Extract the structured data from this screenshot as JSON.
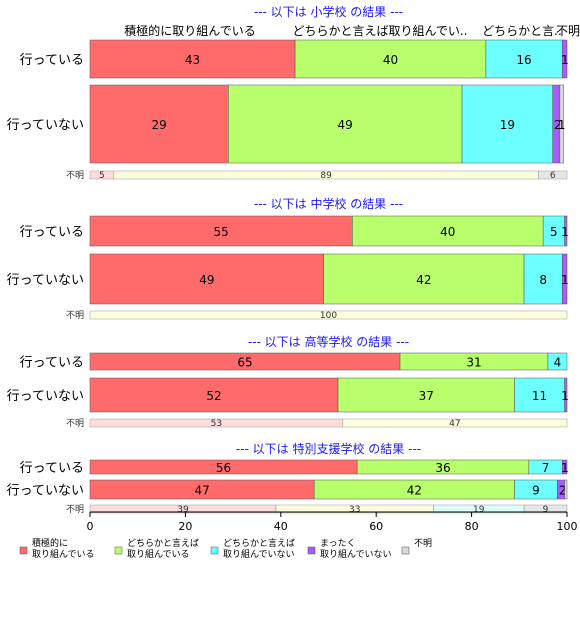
{
  "chart_data": {
    "type": "bar",
    "orientation": "horizontal",
    "stacked": true,
    "xlim": [
      0,
      100
    ],
    "xticks": [
      0,
      20,
      40,
      60,
      80,
      100
    ],
    "top_header_labels": [
      "積極的に取り組んでいる",
      "どちらかと言えば取り組んでい..",
      "どちらかと言..",
      "不明"
    ],
    "colors": [
      "#ff6b6b",
      "#b8ff6b",
      "#6bffff",
      "#a85bff",
      "#d9d9d9"
    ],
    "legend": [
      {
        "line1": "積極的に",
        "line2": "取り組んでいる"
      },
      {
        "line1": "どちらかと言えば",
        "line2": "取り組んでいる"
      },
      {
        "line1": "どちらかと言えば",
        "line2": "取り組んでいない"
      },
      {
        "line1": "まったく",
        "line2": "取り組んでいない"
      },
      {
        "line1": "不明",
        "line2": ""
      }
    ],
    "panels": [
      {
        "title": "--- 以下は 小学校 の結果 ---",
        "rows": [
          {
            "label": "行っている",
            "values": [
              43,
              40,
              16,
              1,
              0
            ],
            "labels": [
              "43",
              "40",
              "16",
              "1",
              ""
            ]
          },
          {
            "label": "行っていない",
            "values": [
              29,
              49,
              19,
              1.5,
              0.8
            ],
            "labels": [
              "29",
              "49",
              "19",
              "2",
              "1"
            ]
          }
        ],
        "fumei": {
          "label": "不明",
          "values": [
            5,
            89,
            0,
            0,
            6
          ],
          "labels": [
            "5",
            "89",
            "",
            "",
            "6"
          ]
        }
      },
      {
        "title": "--- 以下は 中学校 の結果 ---",
        "rows": [
          {
            "label": "行っている",
            "values": [
              55,
              40,
              4.5,
              0.5,
              0
            ],
            "labels": [
              "55",
              "40",
              "5",
              "1",
              ""
            ]
          },
          {
            "label": "行っていない",
            "values": [
              49,
              42,
              8,
              1,
              0
            ],
            "labels": [
              "49",
              "42",
              "8",
              "1",
              ""
            ]
          }
        ],
        "fumei": {
          "label": "不明",
          "values": [
            0,
            100,
            0,
            0,
            0
          ],
          "labels": [
            "",
            "100",
            "",
            "",
            ""
          ]
        }
      },
      {
        "title": "--- 以下は 高等学校 の結果 ---",
        "rows": [
          {
            "label": "行っている",
            "values": [
              65,
              31,
              4,
              0,
              0
            ],
            "labels": [
              "65",
              "31",
              "4",
              "",
              ""
            ]
          },
          {
            "label": "行っていない",
            "values": [
              52,
              37,
              10.5,
              0.5,
              0
            ],
            "labels": [
              "52",
              "37",
              "11",
              "1",
              ""
            ]
          }
        ],
        "fumei": {
          "label": "不明",
          "values": [
            53,
            47,
            0,
            0,
            0
          ],
          "labels": [
            "53",
            "47",
            "",
            "",
            ""
          ]
        }
      },
      {
        "title": "--- 以下は 特別支援学校 の結果 ---",
        "rows": [
          {
            "label": "行っている",
            "values": [
              56,
              36,
              7,
              1,
              0
            ],
            "labels": [
              "56",
              "36",
              "7",
              "1",
              ""
            ]
          },
          {
            "label": "行っていない",
            "values": [
              47,
              42,
              9,
              1.5,
              0.5
            ],
            "labels": [
              "47",
              "42",
              "9",
              "2",
              ""
            ]
          }
        ],
        "fumei": {
          "label": "不明",
          "values": [
            39,
            33,
            19,
            0,
            9
          ],
          "labels": [
            "39",
            "33",
            "19",
            "",
            "9"
          ]
        }
      }
    ]
  }
}
